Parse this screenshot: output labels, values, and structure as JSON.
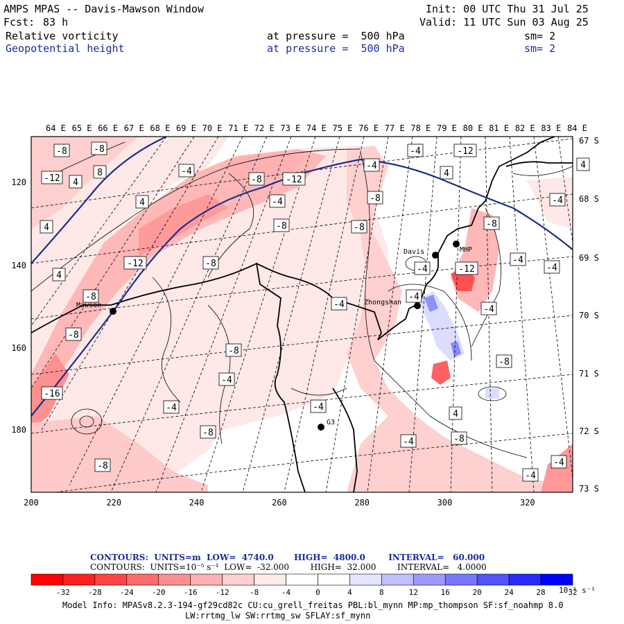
{
  "header": {
    "title": "AMPS MPAS -- Davis-Mawson Window",
    "forecast_label": "Fcst:",
    "forecast_hours": "83 h",
    "init": "Init: 00 UTC Thu 31 Jul 25",
    "valid": "Valid: 11 UTC Sun 03 Aug 25",
    "field1": {
      "name": "Relative vorticity",
      "level": "at pressure =  500 hPa",
      "smooth": "sm= 2"
    },
    "field2": {
      "name": "Geopotential height",
      "level": "at pressure =  500 hPa",
      "smooth": "sm= 2"
    }
  },
  "axes": {
    "top_lon": [
      "64 E",
      "65 E",
      "66 E",
      "67 E",
      "68 E",
      "69 E",
      "70 E",
      "71 E",
      "72 E",
      "73 E",
      "74 E",
      "75 E",
      "76 E",
      "77 E",
      "78 E",
      "79 E",
      "80 E",
      "81 E",
      "82 E",
      "83 E",
      "84 E"
    ],
    "right_lat": [
      "67 S",
      "68 S",
      "69 S",
      "70 S",
      "71 S",
      "72 S",
      "73 S"
    ],
    "left_y": [
      "120",
      "140",
      "160",
      "180"
    ],
    "bottom_x": [
      "200",
      "220",
      "240",
      "260",
      "280",
      "300",
      "320"
    ]
  },
  "stations": [
    {
      "name": "Mawson"
    },
    {
      "name": "Davis"
    },
    {
      "name": "Zhongshan"
    },
    {
      "name": "G3"
    },
    {
      "name": "MHP"
    }
  ],
  "contour_labels": [
    "-8",
    "-8",
    "8",
    "-12",
    "4",
    "-4",
    "4",
    "4",
    "4",
    "-8",
    "-12",
    "-8",
    "-4",
    "-4",
    "-8",
    "-8",
    "-12",
    "-4",
    "-12",
    "4",
    "-8",
    "-8",
    "-12",
    "-8",
    "-4",
    "-4",
    "-4",
    "-4",
    "-4",
    "-4",
    "-4",
    "4",
    "-4",
    "-8",
    "-8",
    "-4",
    "-8",
    "-16",
    "-4",
    "-8",
    "4",
    "-8",
    "-4",
    "-4",
    "-8",
    "-4"
  ],
  "footer": {
    "contours1": "CONTOURS:  UNITS=m  LOW=  4740.0       HIGH=  4800.0        INTERVAL=   60.000",
    "contours2": "CONTOURS:  UNITS=10⁻⁵ s⁻¹  LOW=  -32.000        HIGH=  32.000        INTERVAL=   4.0000",
    "colorbar_ticks": [
      "-32",
      "-28",
      "-24",
      "-20",
      "-16",
      "-12",
      "-8",
      "-4",
      "0",
      "4",
      "8",
      "12",
      "16",
      "20",
      "24",
      "28",
      "32"
    ],
    "colorbar_units": "10⁻⁵ s⁻¹",
    "colorbar_colors": [
      "#ff0000",
      "#ff2020",
      "#ff4444",
      "#ff6a6a",
      "#ff8f8f",
      "#ffb0b0",
      "#ffcfcf",
      "#ffeaea",
      "#ffffff",
      "#ffffff",
      "#e4e4ff",
      "#c0c0ff",
      "#9c9cff",
      "#7878ff",
      "#5252ff",
      "#2a2aff",
      "#0000ff"
    ],
    "model_info": "Model Info: MPASv8.2.3-194-gf29cd82c CU:cu_grell_freitas PBL:bl_mynn MP:mp_thompson SF:sf_noahmp 8.0",
    "model_info2": "LW:rrtmg_lw SW:rrtmg_sw SFLAY:sf_mynn"
  }
}
